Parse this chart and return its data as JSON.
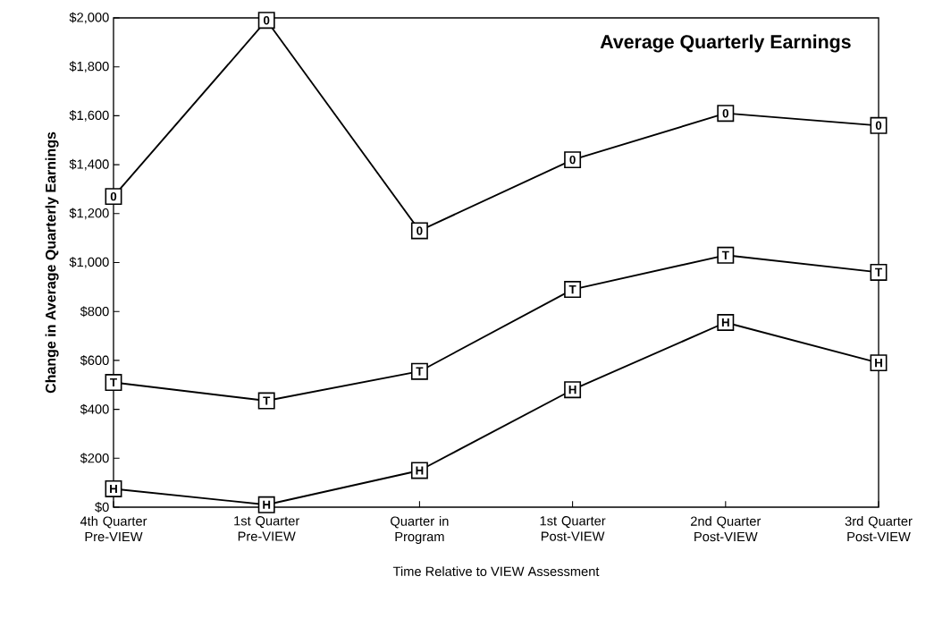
{
  "chart_data": {
    "type": "line",
    "title": "Average Quarterly Earnings",
    "xlabel": "Time Relative to VIEW Assessment",
    "ylabel": "Change in Average Quarterly Earnings",
    "categories": [
      "4th Quarter Pre-VIEW",
      "1st Quarter Pre-VIEW",
      "Quarter in Program",
      "1st Quarter Post-VIEW",
      "2nd Quarter Post-VIEW",
      "3rd Quarter Post-VIEW"
    ],
    "series": [
      {
        "name": "0",
        "color": "#000000",
        "values": [
          1270,
          1990,
          1130,
          1420,
          1610,
          1560
        ]
      },
      {
        "name": "T",
        "color": "#000000",
        "values": [
          510,
          435,
          555,
          890,
          1030,
          960
        ]
      },
      {
        "name": "H",
        "color": "#000000",
        "values": [
          75,
          10,
          150,
          480,
          755,
          590
        ]
      }
    ],
    "ylim": [
      0,
      2000
    ],
    "yticks": [
      {
        "value": 0,
        "label": "$0"
      },
      {
        "value": 200,
        "label": "$200"
      },
      {
        "value": 400,
        "label": "$400"
      },
      {
        "value": 600,
        "label": "$600"
      },
      {
        "value": 800,
        "label": "$800"
      },
      {
        "value": 1000,
        "label": "$1,000"
      },
      {
        "value": 1200,
        "label": "$1,200"
      },
      {
        "value": 1400,
        "label": "$1,400"
      },
      {
        "value": 1600,
        "label": "$1,600"
      },
      {
        "value": 1800,
        "label": "$1,800"
      },
      {
        "value": 2000,
        "label": "$2,000"
      }
    ],
    "marker": "square"
  }
}
